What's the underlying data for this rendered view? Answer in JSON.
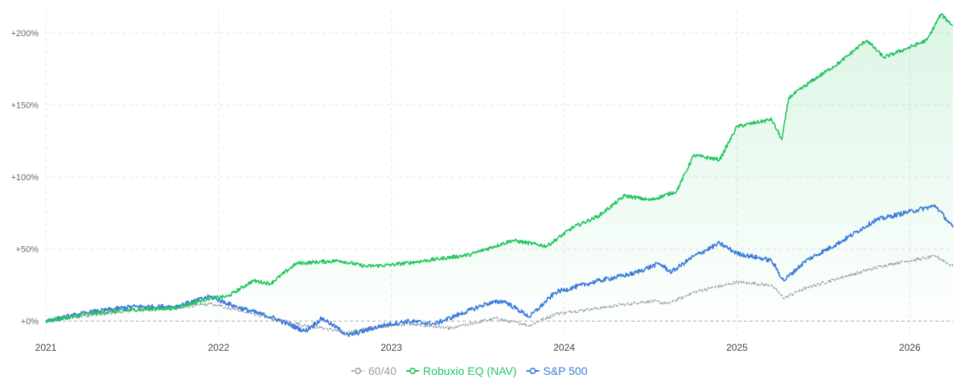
{
  "chart_data": {
    "type": "line",
    "title": "",
    "xlabel": "",
    "ylabel": "",
    "grid": true,
    "legend_position": "bottom",
    "x_range": [
      2021.0,
      2026.25
    ],
    "ylim": [
      -10,
      215
    ],
    "x_ticks": [
      {
        "value": 2021,
        "label": "2021"
      },
      {
        "value": 2022,
        "label": "2022"
      },
      {
        "value": 2023,
        "label": "2023"
      },
      {
        "value": 2024,
        "label": "2024"
      },
      {
        "value": 2025,
        "label": "2025"
      },
      {
        "value": 2026,
        "label": "2026"
      }
    ],
    "y_ticks": [
      {
        "value": 0,
        "label": "+0%"
      },
      {
        "value": 50,
        "label": "+50%"
      },
      {
        "value": 100,
        "label": "+100%"
      },
      {
        "value": 150,
        "label": "+150%"
      },
      {
        "value": 200,
        "label": "+200%"
      }
    ],
    "series": [
      {
        "name": "60/40",
        "color": "#9aa0a6",
        "dashed": true,
        "fill": false,
        "points": [
          [
            2021.0,
            0
          ],
          [
            2021.25,
            4
          ],
          [
            2021.5,
            7
          ],
          [
            2021.75,
            9
          ],
          [
            2021.95,
            12
          ],
          [
            2022.1,
            8
          ],
          [
            2022.3,
            2
          ],
          [
            2022.5,
            -3
          ],
          [
            2022.75,
            -8
          ],
          [
            2022.9,
            -4
          ],
          [
            2023.1,
            -2
          ],
          [
            2023.35,
            -5
          ],
          [
            2023.6,
            2
          ],
          [
            2023.8,
            -3
          ],
          [
            2023.95,
            5
          ],
          [
            2024.25,
            10
          ],
          [
            2024.5,
            14
          ],
          [
            2024.6,
            12
          ],
          [
            2024.75,
            20
          ],
          [
            2025.0,
            27
          ],
          [
            2025.2,
            25
          ],
          [
            2025.27,
            16
          ],
          [
            2025.4,
            23
          ],
          [
            2025.6,
            30
          ],
          [
            2025.8,
            37
          ],
          [
            2026.0,
            42
          ],
          [
            2026.15,
            45
          ],
          [
            2026.25,
            38
          ]
        ]
      },
      {
        "name": "Robuxio EQ (NAV)",
        "color": "#22c55e",
        "dashed": false,
        "fill": true,
        "points": [
          [
            2021.0,
            0
          ],
          [
            2021.25,
            5
          ],
          [
            2021.5,
            8
          ],
          [
            2021.75,
            9
          ],
          [
            2021.95,
            16
          ],
          [
            2022.05,
            17
          ],
          [
            2022.2,
            28
          ],
          [
            2022.3,
            26
          ],
          [
            2022.45,
            40
          ],
          [
            2022.7,
            42
          ],
          [
            2022.85,
            38
          ],
          [
            2023.0,
            39
          ],
          [
            2023.2,
            42
          ],
          [
            2023.45,
            46
          ],
          [
            2023.7,
            56
          ],
          [
            2023.9,
            52
          ],
          [
            2024.05,
            65
          ],
          [
            2024.2,
            73
          ],
          [
            2024.35,
            87
          ],
          [
            2024.5,
            84
          ],
          [
            2024.65,
            90
          ],
          [
            2024.75,
            115
          ],
          [
            2024.9,
            112
          ],
          [
            2025.0,
            135
          ],
          [
            2025.2,
            140
          ],
          [
            2025.26,
            126
          ],
          [
            2025.3,
            155
          ],
          [
            2025.45,
            168
          ],
          [
            2025.6,
            180
          ],
          [
            2025.75,
            195
          ],
          [
            2025.85,
            183
          ],
          [
            2026.0,
            190
          ],
          [
            2026.1,
            195
          ],
          [
            2026.18,
            213
          ],
          [
            2026.25,
            205
          ]
        ]
      },
      {
        "name": "S&P 500",
        "color": "#3b7bdb",
        "dashed": false,
        "fill": false,
        "points": [
          [
            2021.0,
            0
          ],
          [
            2021.25,
            6
          ],
          [
            2021.5,
            10
          ],
          [
            2021.75,
            10
          ],
          [
            2021.95,
            17
          ],
          [
            2022.1,
            10
          ],
          [
            2022.3,
            3
          ],
          [
            2022.5,
            -7
          ],
          [
            2022.6,
            2
          ],
          [
            2022.75,
            -10
          ],
          [
            2022.95,
            -3
          ],
          [
            2023.1,
            0
          ],
          [
            2023.25,
            -2
          ],
          [
            2023.4,
            5
          ],
          [
            2023.55,
            12
          ],
          [
            2023.65,
            14
          ],
          [
            2023.8,
            3
          ],
          [
            2023.95,
            20
          ],
          [
            2024.2,
            28
          ],
          [
            2024.4,
            33
          ],
          [
            2024.55,
            40
          ],
          [
            2024.62,
            34
          ],
          [
            2024.75,
            45
          ],
          [
            2024.9,
            54
          ],
          [
            2025.0,
            47
          ],
          [
            2025.2,
            42
          ],
          [
            2025.27,
            28
          ],
          [
            2025.4,
            42
          ],
          [
            2025.6,
            55
          ],
          [
            2025.8,
            70
          ],
          [
            2026.0,
            76
          ],
          [
            2026.15,
            80
          ],
          [
            2026.25,
            65
          ]
        ]
      }
    ]
  }
}
